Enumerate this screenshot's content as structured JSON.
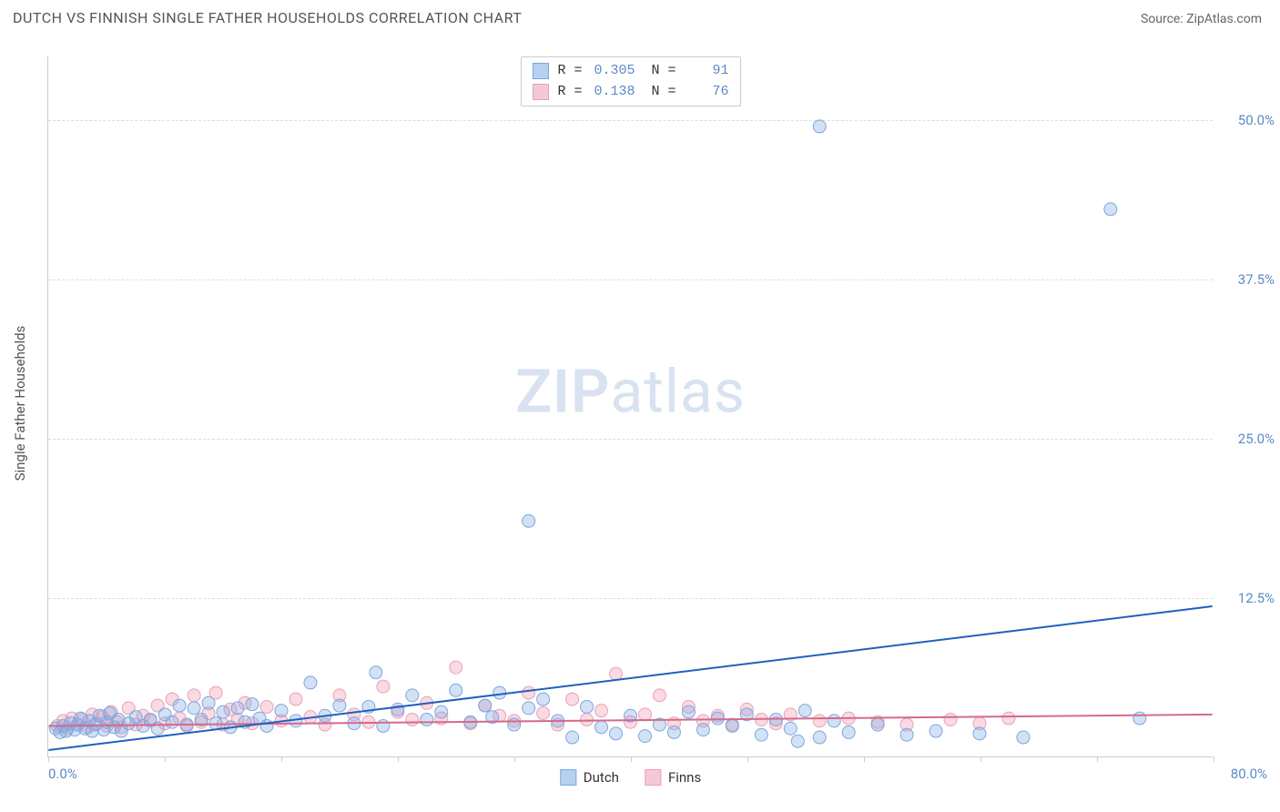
{
  "header": {
    "title": "DUTCH VS FINNISH SINGLE FATHER HOUSEHOLDS CORRELATION CHART",
    "source_label": "Source: ",
    "source_name": "ZipAtlas.com"
  },
  "watermark": {
    "part1": "ZIP",
    "part2": "atlas"
  },
  "chart": {
    "type": "scatter",
    "xlim": [
      0,
      80
    ],
    "ylim": [
      0,
      55
    ],
    "ytick_values": [
      12.5,
      25.0,
      37.5,
      50.0
    ],
    "ytick_labels": [
      "12.5%",
      "25.0%",
      "37.5%",
      "50.0%"
    ],
    "xtick_step": 8,
    "ylabel": "Single Father Households",
    "xaxis_left_label": "0.0%",
    "xaxis_right_label": "80.0%",
    "marker_radius": 7,
    "marker_stroke_width": 1,
    "trend_line_width": 2,
    "colors": {
      "series1_fill": "rgba(130,170,225,0.35)",
      "series1_stroke": "#7aa8e0",
      "series2_fill": "rgba(240,150,175,0.35)",
      "series2_stroke": "#eaa0b8",
      "trend1": "#2060c0",
      "trend2": "#d46a8a",
      "grid": "#dddddd",
      "axis": "#cccccc",
      "tick_text": "#5b8ac6"
    },
    "legend_top": {
      "rows": [
        {
          "swatch_fill": "#b8d0f0",
          "swatch_border": "#7aa8e0",
          "r_label": "R =",
          "r_value": "0.305",
          "n_label": "N =",
          "n_value": "91"
        },
        {
          "swatch_fill": "#f5c8d6",
          "swatch_border": "#eaa0b8",
          "r_label": "R =",
          "r_value": "0.138",
          "n_label": "N =",
          "n_value": "76"
        }
      ]
    },
    "legend_bottom": {
      "items": [
        {
          "swatch_fill": "#b8d0f0",
          "swatch_border": "#7aa8e0",
          "label": "Dutch"
        },
        {
          "swatch_fill": "#f5c8d6",
          "swatch_border": "#eaa0b8",
          "label": "Finns"
        }
      ]
    },
    "trend_lines": {
      "series1": {
        "x1": 0,
        "y1": 0.5,
        "x2": 80,
        "y2": 11.8
      },
      "series2": {
        "x1": 0,
        "y1": 2.4,
        "x2": 80,
        "y2": 3.3
      }
    },
    "series1_points": [
      [
        0.5,
        2.2
      ],
      [
        0.8,
        1.9
      ],
      [
        1.0,
        2.4
      ],
      [
        1.2,
        2.0
      ],
      [
        1.5,
        2.6
      ],
      [
        1.8,
        2.1
      ],
      [
        2.0,
        2.5
      ],
      [
        2.2,
        3.0
      ],
      [
        2.5,
        2.2
      ],
      [
        2.8,
        2.8
      ],
      [
        3.0,
        2.0
      ],
      [
        3.2,
        2.5
      ],
      [
        3.5,
        3.2
      ],
      [
        3.8,
        2.1
      ],
      [
        4.0,
        2.7
      ],
      [
        4.2,
        3.4
      ],
      [
        4.5,
        2.3
      ],
      [
        4.8,
        2.9
      ],
      [
        5.0,
        2.0
      ],
      [
        5.5,
        2.6
      ],
      [
        6.0,
        3.1
      ],
      [
        6.5,
        2.4
      ],
      [
        7.0,
        2.9
      ],
      [
        7.5,
        2.2
      ],
      [
        8.0,
        3.3
      ],
      [
        8.5,
        2.7
      ],
      [
        9.0,
        4.0
      ],
      [
        9.5,
        2.5
      ],
      [
        10.0,
        3.8
      ],
      [
        10.5,
        2.9
      ],
      [
        11.0,
        4.2
      ],
      [
        11.5,
        2.6
      ],
      [
        12.0,
        3.5
      ],
      [
        12.5,
        2.3
      ],
      [
        13.0,
        3.8
      ],
      [
        13.5,
        2.7
      ],
      [
        14.0,
        4.1
      ],
      [
        14.5,
        3.0
      ],
      [
        15.0,
        2.4
      ],
      [
        16.0,
        3.6
      ],
      [
        17.0,
        2.8
      ],
      [
        18.0,
        5.8
      ],
      [
        19.0,
        3.2
      ],
      [
        20.0,
        4.0
      ],
      [
        21.0,
        2.6
      ],
      [
        22.0,
        3.9
      ],
      [
        22.5,
        6.6
      ],
      [
        23.0,
        2.4
      ],
      [
        24.0,
        3.7
      ],
      [
        25.0,
        4.8
      ],
      [
        26.0,
        2.9
      ],
      [
        27.0,
        3.5
      ],
      [
        28.0,
        5.2
      ],
      [
        29.0,
        2.7
      ],
      [
        30.0,
        4.0
      ],
      [
        30.5,
        3.1
      ],
      [
        31.0,
        5.0
      ],
      [
        32.0,
        2.5
      ],
      [
        33.0,
        3.8
      ],
      [
        33.0,
        18.5
      ],
      [
        34.0,
        4.5
      ],
      [
        35.0,
        2.8
      ],
      [
        36.0,
        1.5
      ],
      [
        37.0,
        3.9
      ],
      [
        38.0,
        2.3
      ],
      [
        39.0,
        1.8
      ],
      [
        40.0,
        3.2
      ],
      [
        41.0,
        1.6
      ],
      [
        42.0,
        2.5
      ],
      [
        43.0,
        1.9
      ],
      [
        44.0,
        3.5
      ],
      [
        45.0,
        2.1
      ],
      [
        46.0,
        3.0
      ],
      [
        47.0,
        2.4
      ],
      [
        48.0,
        3.3
      ],
      [
        49.0,
        1.7
      ],
      [
        50.0,
        2.9
      ],
      [
        51.0,
        2.2
      ],
      [
        51.5,
        1.2
      ],
      [
        52.0,
        3.6
      ],
      [
        53.0,
        1.5
      ],
      [
        53.0,
        49.5
      ],
      [
        54.0,
        2.8
      ],
      [
        55.0,
        1.9
      ],
      [
        57.0,
        2.5
      ],
      [
        59.0,
        1.7
      ],
      [
        61.0,
        2.0
      ],
      [
        64.0,
        1.8
      ],
      [
        67.0,
        1.5
      ],
      [
        73.0,
        43.0
      ],
      [
        75.0,
        3.0
      ]
    ],
    "series2_points": [
      [
        0.6,
        2.4
      ],
      [
        1.0,
        2.8
      ],
      [
        1.3,
        2.2
      ],
      [
        1.6,
        3.0
      ],
      [
        2.0,
        2.5
      ],
      [
        2.3,
        2.9
      ],
      [
        2.7,
        2.3
      ],
      [
        3.0,
        3.3
      ],
      [
        3.3,
        2.6
      ],
      [
        3.7,
        3.1
      ],
      [
        4.0,
        2.4
      ],
      [
        4.3,
        3.5
      ],
      [
        4.7,
        2.7
      ],
      [
        5.0,
        2.3
      ],
      [
        5.5,
        3.8
      ],
      [
        6.0,
        2.5
      ],
      [
        6.5,
        3.2
      ],
      [
        7.0,
        2.8
      ],
      [
        7.5,
        4.0
      ],
      [
        8.0,
        2.6
      ],
      [
        8.5,
        4.5
      ],
      [
        9.0,
        3.0
      ],
      [
        9.5,
        2.4
      ],
      [
        10.0,
        4.8
      ],
      [
        10.5,
        2.7
      ],
      [
        11.0,
        3.4
      ],
      [
        11.5,
        5.0
      ],
      [
        12.0,
        2.5
      ],
      [
        12.5,
        3.7
      ],
      [
        13.0,
        2.9
      ],
      [
        13.5,
        4.2
      ],
      [
        14.0,
        2.6
      ],
      [
        15.0,
        3.9
      ],
      [
        16.0,
        2.8
      ],
      [
        17.0,
        4.5
      ],
      [
        18.0,
        3.1
      ],
      [
        19.0,
        2.5
      ],
      [
        20.0,
        4.8
      ],
      [
        21.0,
        3.3
      ],
      [
        22.0,
        2.7
      ],
      [
        23.0,
        5.5
      ],
      [
        24.0,
        3.5
      ],
      [
        25.0,
        2.9
      ],
      [
        26.0,
        4.2
      ],
      [
        27.0,
        3.0
      ],
      [
        28.0,
        7.0
      ],
      [
        29.0,
        2.6
      ],
      [
        30.0,
        4.0
      ],
      [
        31.0,
        3.2
      ],
      [
        32.0,
        2.8
      ],
      [
        33.0,
        5.0
      ],
      [
        34.0,
        3.4
      ],
      [
        35.0,
        2.5
      ],
      [
        36.0,
        4.5
      ],
      [
        37.0,
        2.9
      ],
      [
        38.0,
        3.6
      ],
      [
        39.0,
        6.5
      ],
      [
        40.0,
        2.7
      ],
      [
        41.0,
        3.3
      ],
      [
        42.0,
        4.8
      ],
      [
        43.0,
        2.6
      ],
      [
        44.0,
        3.9
      ],
      [
        45.0,
        2.8
      ],
      [
        46.0,
        3.2
      ],
      [
        47.0,
        2.5
      ],
      [
        48.0,
        3.7
      ],
      [
        49.0,
        2.9
      ],
      [
        50.0,
        2.6
      ],
      [
        51.0,
        3.3
      ],
      [
        53.0,
        2.8
      ],
      [
        55.0,
        3.0
      ],
      [
        57.0,
        2.7
      ],
      [
        59.0,
        2.5
      ],
      [
        62.0,
        2.9
      ],
      [
        64.0,
        2.6
      ],
      [
        66.0,
        3.0
      ]
    ]
  }
}
